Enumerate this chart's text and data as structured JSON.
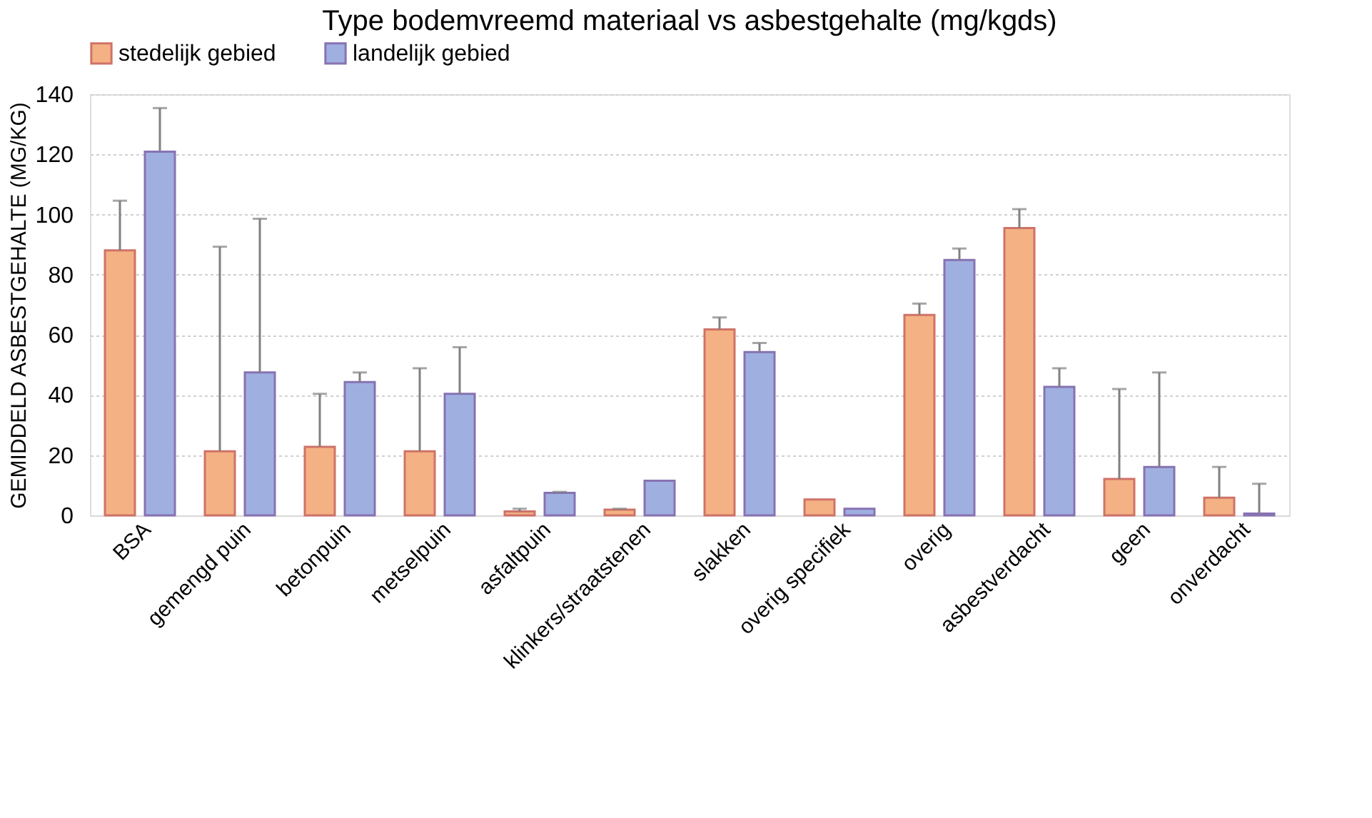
{
  "chart_data": {
    "type": "bar",
    "title": "Type bodemvreemd materiaal vs asbestgehalte (mg/kgds)",
    "ylabel": "GEMIDDELD ASBESTGEHALTE (MG/KG)",
    "categories": [
      "BSA",
      "gemengd puin",
      "betonpuin",
      "metselpuin",
      "asfaltpuin",
      "klinkers/straatstenen",
      "slakken",
      "overig specifiek",
      "overig",
      "asbestverdacht",
      "geen",
      "onverdacht"
    ],
    "series": [
      {
        "name": "stedelijk gebied",
        "color": "#f4b183",
        "values": [
          88.1,
          21.3,
          22.8,
          21.3,
          1.3,
          1.9,
          61.8,
          5.3,
          66.6,
          95.5,
          12.1,
          5.9
        ],
        "errors": [
          [
            88.1,
            104.6
          ],
          [
            21.3,
            89.3
          ],
          [
            22.8,
            40.4
          ],
          [
            21.3,
            48.9
          ],
          [
            1.3,
            2.2
          ],
          [
            1.9,
            2.2
          ],
          [
            61.8,
            65.8
          ],
          null,
          [
            66.6,
            70.4
          ],
          [
            95.5,
            101.8
          ],
          [
            12.1,
            42
          ],
          [
            5.9,
            16.1
          ]
        ]
      },
      {
        "name": "landelijk gebied",
        "color": "#9fb0e0",
        "values": [
          120.9,
          47.5,
          44.3,
          40.4,
          7.5,
          11.5,
          54.3,
          2.2,
          84.9,
          42.7,
          16.1,
          0.6
        ],
        "errors": [
          [
            120.9,
            135.4
          ],
          [
            47.5,
            98.6
          ],
          [
            44.3,
            47.5
          ],
          [
            40.4,
            55.9
          ],
          [
            7.5,
            7.8
          ],
          null,
          [
            54.3,
            57.3
          ],
          null,
          [
            84.9,
            88.7
          ],
          [
            42.7,
            48.9
          ],
          [
            16.1,
            47.5
          ],
          [
            0.6,
            10.5
          ]
        ]
      }
    ],
    "ylim": [
      0,
      140
    ],
    "yticks": [
      0,
      20,
      40,
      60,
      80,
      100,
      120,
      140
    ],
    "grid": "y",
    "legend": "top"
  }
}
